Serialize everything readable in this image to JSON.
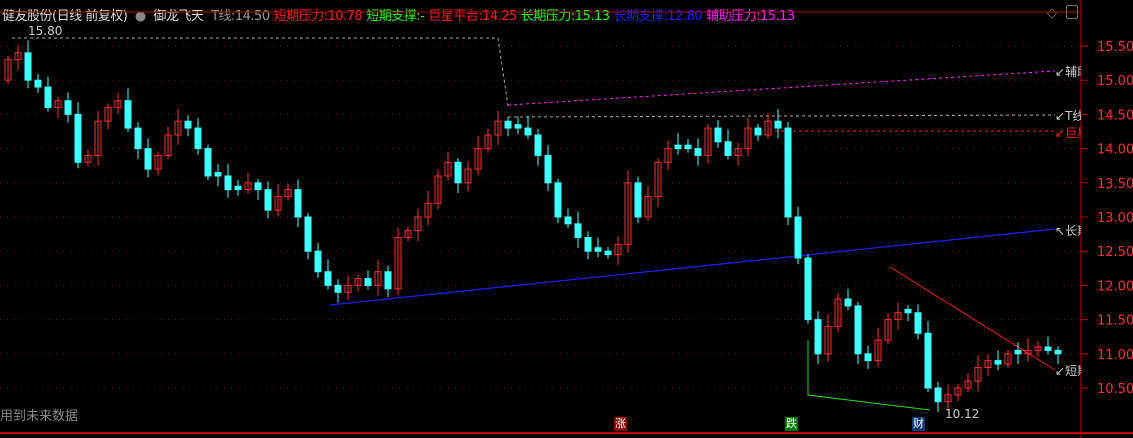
{
  "header": {
    "title": "健友股份(日线 前复权)",
    "indicator": "御龙飞天",
    "items": [
      {
        "label": "T线:",
        "value": "14.50",
        "color": "#9a9a9a"
      },
      {
        "label": "短期压力:",
        "value": "10.78",
        "color": "#ff2020"
      },
      {
        "label": "短期支撑:",
        "value": "-",
        "color": "#20ff20"
      },
      {
        "label": "巨星平台:",
        "value": "14.25",
        "color": "#ff2020"
      },
      {
        "label": "长期压力:",
        "value": "15.13",
        "color": "#20ff20"
      },
      {
        "label": "长期支撑:",
        "value": "12.80",
        "color": "#2020ff"
      },
      {
        "label": "辅助压力:",
        "value": "15.13",
        "color": "#ff20ff"
      }
    ]
  },
  "axis": {
    "ticks": [
      "15.50",
      "15.00",
      "14.50",
      "14.00",
      "13.50",
      "13.00",
      "12.50",
      "12.00",
      "11.50",
      "11.00",
      "10.50"
    ],
    "color": "#ff3030"
  },
  "annotations": {
    "high": "15.80",
    "low": "10.12",
    "future_data": "用到未来数据"
  },
  "line_labels": [
    "辅助压力",
    "T线",
    "巨星平台",
    "长期支撑",
    "短期压力"
  ],
  "markers": [
    {
      "text": "涨",
      "bg": "#8b0000"
    },
    {
      "text": "跌",
      "bg": "#007a00"
    },
    {
      "text": "财",
      "bg": "#0b3a7a"
    }
  ],
  "closes": [
    15.3,
    15.4,
    15.0,
    14.9,
    14.6,
    14.7,
    14.5,
    13.8,
    13.9,
    14.4,
    14.6,
    14.7,
    14.3,
    14.0,
    13.7,
    13.9,
    14.2,
    14.4,
    14.3,
    14.0,
    13.6,
    13.6,
    13.4,
    13.4,
    13.5,
    13.4,
    13.1,
    13.3,
    13.4,
    13.0,
    12.5,
    12.2,
    12.0,
    11.9,
    12.0,
    12.1,
    12.0,
    12.2,
    11.95,
    12.7,
    12.8,
    13.0,
    13.2,
    13.6,
    13.8,
    13.5,
    13.7,
    14.0,
    14.2,
    14.4,
    14.3,
    14.3,
    14.2,
    13.9,
    13.5,
    13.0,
    12.9,
    12.7,
    12.5,
    12.5,
    12.45,
    12.6,
    13.5,
    13.0,
    13.3,
    13.8,
    14.0,
    14.0,
    14.0,
    13.9,
    14.3,
    14.1,
    13.9,
    14.0,
    14.3,
    14.2,
    14.4,
    14.3,
    13.0,
    12.4,
    11.5,
    11.0,
    11.4,
    11.8,
    11.7,
    11.0,
    10.9,
    11.2,
    11.5,
    11.6,
    11.6,
    11.3,
    10.5,
    10.3,
    10.4,
    10.5,
    10.6,
    10.8,
    10.9,
    10.85,
    11.0,
    11.0,
    11.05,
    11.1,
    11.05,
    11.0
  ]
}
